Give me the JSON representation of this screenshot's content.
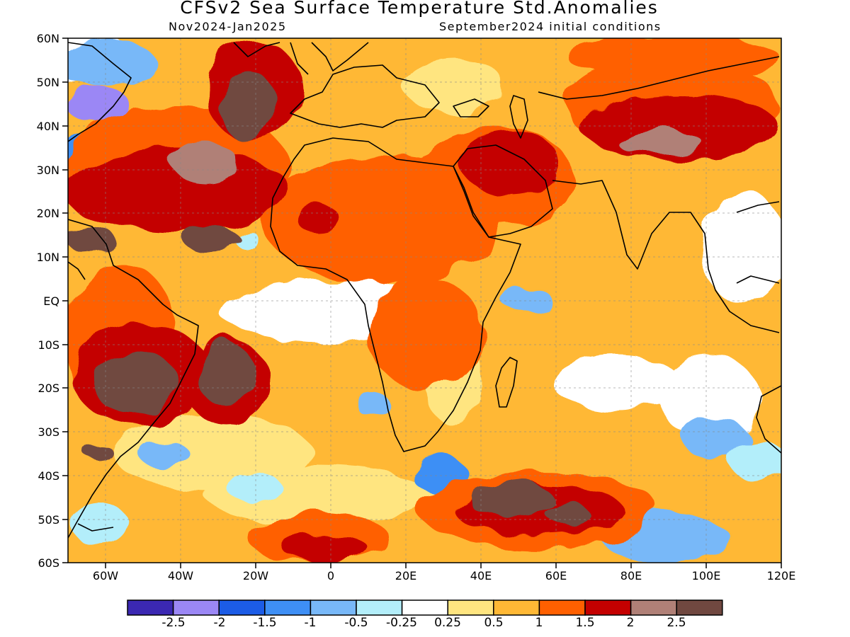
{
  "header": {
    "title": "CFSv2 Sea Surface Temperature Std.Anomalies",
    "valid_period": "Nov2024-Jan2025",
    "initial_conditions": "September2024 initial conditions"
  },
  "map": {
    "projection": "lat-lon",
    "lon_range": [
      -70,
      120
    ],
    "lat_range": [
      -60,
      60
    ],
    "lat_labels": [
      "60N",
      "50N",
      "40N",
      "30N",
      "20N",
      "10N",
      "EQ",
      "10S",
      "20S",
      "30S",
      "40S",
      "50S",
      "60S"
    ],
    "lon_labels": [
      "60W",
      "40W",
      "20W",
      "0",
      "20E",
      "40E",
      "60E",
      "80E",
      "100E",
      "120E"
    ]
  },
  "colorbar": {
    "colors": [
      "#3b28b2",
      "#9b87f5",
      "#1c5ce6",
      "#3e8ff5",
      "#78b8f8",
      "#b3eefa",
      "#ffffff",
      "#ffe580",
      "#ffb835",
      "#ff6000",
      "#c40000",
      "#b08077",
      "#704840"
    ],
    "labels": [
      "-2.5",
      "-2",
      "-1.5",
      "-1",
      "-0.5",
      "-0.25",
      "0.25",
      "0.5",
      "1",
      "1.5",
      "2",
      "2.5"
    ]
  }
}
